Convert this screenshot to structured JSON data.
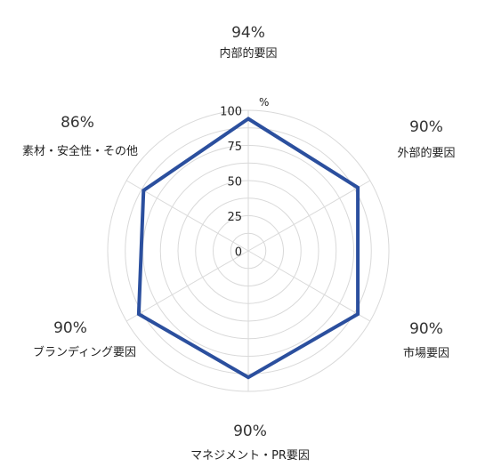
{
  "chart_data": {
    "type": "radar",
    "unit": "%",
    "rmax": 100,
    "ticks": [
      0,
      25,
      50,
      75,
      100
    ],
    "grid": true,
    "categories": [
      "内部的要因",
      "外部的要因",
      "市場要因",
      "マネジメント・PR要因",
      "ブランディング要因",
      "素材・安全性・その他"
    ],
    "value_labels": [
      "94%",
      "90%",
      "90%",
      "90%",
      "90%",
      "86%"
    ],
    "series": [
      {
        "values": [
          94,
          90,
          90,
          90,
          90,
          86
        ]
      }
    ],
    "colors": {
      "series": "#2b4f9e",
      "grid": "#d9d9d9"
    }
  }
}
